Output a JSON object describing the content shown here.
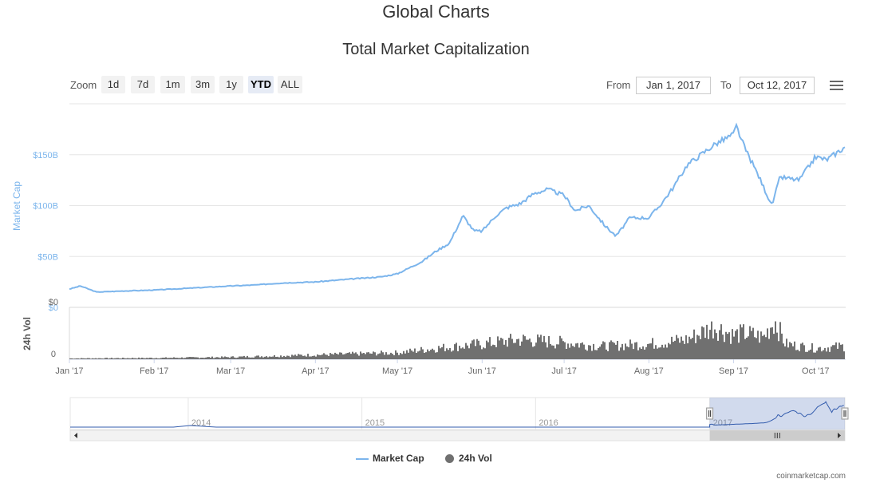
{
  "header": {
    "page_title": "Global Charts"
  },
  "toolbar": {
    "zoom_label": "Zoom",
    "zoom_buttons": [
      "1d",
      "7d",
      "1m",
      "3m",
      "1y",
      "YTD",
      "ALL"
    ],
    "selected_zoom": "YTD",
    "from_label": "From",
    "from_value": "Jan 1, 2017",
    "to_label": "To",
    "to_value": "Oct 12, 2017",
    "menu_icon": "hamburger-menu-icon"
  },
  "chart_data": {
    "type": "line",
    "title": "Total Market Capitalization",
    "ylabel": "Market Cap",
    "ylim": [
      0,
      200
    ],
    "y_unit": "B",
    "y_ticks": [
      "$0",
      "$50B",
      "$100B",
      "$150B"
    ],
    "vol_ylabel": "24h Vol",
    "vol_ticks": [
      "0",
      "$0"
    ],
    "x_ticks": [
      "Jan '17",
      "Feb '17",
      "Mar '17",
      "Apr '17",
      "May '17",
      "Jun '17",
      "Jul '17",
      "Aug '17",
      "Sep '17",
      "Oct '17"
    ],
    "series": [
      {
        "name": "Market Cap",
        "color": "#7cb5ec",
        "x": [
          "2017-01-01",
          "2017-01-05",
          "2017-01-11",
          "2017-01-20",
          "2017-02-01",
          "2017-02-15",
          "2017-03-01",
          "2017-03-10",
          "2017-03-20",
          "2017-04-01",
          "2017-04-15",
          "2017-04-25",
          "2017-05-01",
          "2017-05-10",
          "2017-05-15",
          "2017-05-20",
          "2017-05-25",
          "2017-05-29",
          "2017-06-01",
          "2017-06-06",
          "2017-06-10",
          "2017-06-15",
          "2017-06-20",
          "2017-06-25",
          "2017-07-01",
          "2017-07-05",
          "2017-07-10",
          "2017-07-16",
          "2017-07-20",
          "2017-07-25",
          "2017-08-01",
          "2017-08-05",
          "2017-08-10",
          "2017-08-15",
          "2017-08-20",
          "2017-08-25",
          "2017-09-01",
          "2017-09-02",
          "2017-09-05",
          "2017-09-10",
          "2017-09-15",
          "2017-09-18",
          "2017-09-25",
          "2017-10-01",
          "2017-10-05",
          "2017-10-12"
        ],
        "values": [
          18,
          21,
          15,
          16,
          17,
          19,
          21,
          22,
          24,
          25,
          28,
          30,
          33,
          45,
          55,
          63,
          90,
          75,
          75,
          90,
          98,
          102,
          112,
          116,
          110,
          95,
          100,
          80,
          70,
          88,
          88,
          100,
          118,
          140,
          150,
          160,
          170,
          178,
          157,
          130,
          100,
          128,
          125,
          148,
          145,
          158
        ]
      },
      {
        "name": "24h Vol",
        "color": "#707070",
        "x": [
          "2017-01-01",
          "2017-02-01",
          "2017-03-01",
          "2017-04-01",
          "2017-05-01",
          "2017-05-15",
          "2017-06-01",
          "2017-06-15",
          "2017-07-01",
          "2017-07-15",
          "2017-08-01",
          "2017-08-15",
          "2017-08-25",
          "2017-09-01",
          "2017-09-05",
          "2017-09-12",
          "2017-09-16",
          "2017-09-20",
          "2017-10-01",
          "2017-10-12"
        ],
        "values": [
          0.02,
          0.03,
          0.05,
          0.1,
          0.15,
          0.25,
          0.35,
          0.45,
          0.38,
          0.3,
          0.35,
          0.45,
          0.75,
          0.55,
          0.6,
          0.5,
          0.9,
          0.35,
          0.25,
          0.3
        ]
      }
    ],
    "navigator": {
      "x_ticks": [
        "2014",
        "2015",
        "2016",
        "2017"
      ],
      "selection": [
        "2017-01-01",
        "2017-10-12"
      ]
    },
    "legend_position": "bottom-center",
    "grid": true
  },
  "footer": {
    "credit": "coinmarketcap.com"
  }
}
